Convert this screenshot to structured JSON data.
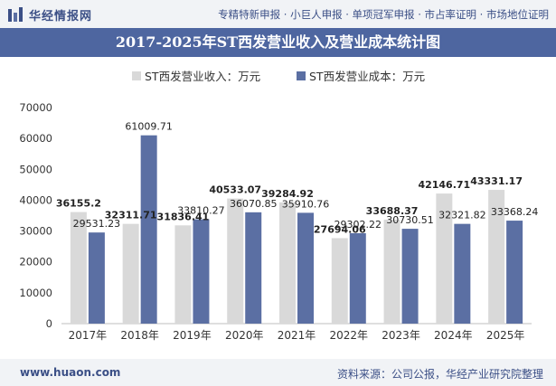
{
  "header": {
    "brand": "华经情报网",
    "nav": "专精特新申报 · 小巨人申报 · 单项冠军申报 · 市占率证明 · 市场地位证明"
  },
  "footer": {
    "url": "www.huaon.com",
    "source": "资料来源：公司公报，华经产业研究院整理"
  },
  "colors": {
    "revenue": "#d9d9d9",
    "cost": "#5b6fa3",
    "title_bg": "#4e66a0",
    "brand": "#3b4f86"
  },
  "chart_data": {
    "type": "bar",
    "title": "2017-2025年ST西发营业收入及营业成本统计图",
    "categories": [
      "2017年",
      "2018年",
      "2019年",
      "2020年",
      "2021年",
      "2022年",
      "2023年",
      "2024年",
      "2025年"
    ],
    "series": [
      {
        "name": "ST西发营业收入：万元",
        "values": [
          36155.2,
          32311.71,
          31836.41,
          40533.07,
          39284.92,
          27694.06,
          33688.37,
          42146.71,
          43331.17
        ],
        "labels": [
          "36155.2",
          "32311.71",
          "31836.41",
          "40533.07",
          "39284.92",
          "27694.06",
          "33688.37",
          "42146.71",
          "43331.17"
        ]
      },
      {
        "name": "ST西发营业成本：万元",
        "values": [
          29531.23,
          61009.71,
          33810.27,
          36070.85,
          35910.76,
          29302.22,
          30730.51,
          32321.82,
          33368.24
        ],
        "labels": [
          "29531.23",
          "61009.71",
          "33810.27",
          "36070.85",
          "35910.76",
          "29302.22",
          "30730.51",
          "32321.82",
          "33368.24"
        ]
      }
    ],
    "ylim": [
      0,
      70000
    ],
    "yticks": [
      "0",
      "10000",
      "20000",
      "30000",
      "40000",
      "50000",
      "60000",
      "70000"
    ],
    "legend_position": "top",
    "grid": false
  }
}
